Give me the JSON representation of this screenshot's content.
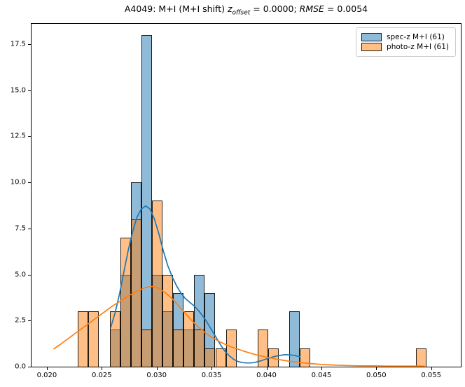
{
  "title": {
    "prefix": "A4049: M+I (M+I shift) ",
    "z_var": "z",
    "z_sub": "offset",
    "z_eq": " = 0.0000; ",
    "rmse_var": "RMSE",
    "rmse_eq": " = 0.0054"
  },
  "legend": {
    "items": [
      {
        "label": "spec-z M+I (61)",
        "color": "#1f77b4"
      },
      {
        "label": "photo-z M+I (61)",
        "color": "#ff7f0e"
      }
    ]
  },
  "chart_data": {
    "type": "histogram",
    "title": "A4049: M+I (M+I shift) z_offset = 0.0000; RMSE = 0.0054",
    "xlabel": "",
    "ylabel": "",
    "grid": false,
    "legend_position": "upper right",
    "xlim": [
      0.0186,
      0.0577
    ],
    "ylim": [
      0,
      18.6
    ],
    "bin_width": 0.00096,
    "x_ticks": [
      {
        "value": 0.02,
        "label": "0.020"
      },
      {
        "value": 0.025,
        "label": "0.025"
      },
      {
        "value": 0.03,
        "label": "0.030"
      },
      {
        "value": 0.035,
        "label": "0.035"
      },
      {
        "value": 0.04,
        "label": "0.040"
      },
      {
        "value": 0.045,
        "label": "0.045"
      },
      {
        "value": 0.05,
        "label": "0.050"
      },
      {
        "value": 0.055,
        "label": "0.055"
      }
    ],
    "y_ticks": [
      {
        "value": 0,
        "label": "0.0"
      },
      {
        "value": 2.5,
        "label": "2.5"
      },
      {
        "value": 5,
        "label": "5.0"
      },
      {
        "value": 7.5,
        "label": "7.5"
      },
      {
        "value": 10,
        "label": "10.0"
      },
      {
        "value": 12.5,
        "label": "12.5"
      },
      {
        "value": 15,
        "label": "15.0"
      },
      {
        "value": 17.5,
        "label": "17.5"
      }
    ],
    "series": [
      {
        "name": "spec-z M+I (61)",
        "color": "#1f77b4",
        "fill_alpha": 0.5,
        "bars": [
          [
            0.02572,
            2
          ],
          [
            0.02668,
            5
          ],
          [
            0.02764,
            10
          ],
          [
            0.02861,
            18
          ],
          [
            0.02957,
            5
          ],
          [
            0.03053,
            3
          ],
          [
            0.03149,
            4
          ],
          [
            0.03246,
            2
          ],
          [
            0.03342,
            5
          ],
          [
            0.03438,
            4
          ],
          [
            0.04209,
            3
          ]
        ],
        "kde": [
          [
            0.0258,
            2.1
          ],
          [
            0.0262,
            2.9
          ],
          [
            0.0266,
            3.9
          ],
          [
            0.027,
            5.1
          ],
          [
            0.0274,
            6.3
          ],
          [
            0.0278,
            7.3
          ],
          [
            0.0282,
            8.1
          ],
          [
            0.0286,
            8.55
          ],
          [
            0.029,
            8.72
          ],
          [
            0.0294,
            8.55
          ],
          [
            0.0298,
            8.0
          ],
          [
            0.0302,
            7.2
          ],
          [
            0.0306,
            6.3
          ],
          [
            0.031,
            5.5
          ],
          [
            0.0314,
            4.9
          ],
          [
            0.0318,
            4.4
          ],
          [
            0.0322,
            4.0
          ],
          [
            0.0326,
            3.7
          ],
          [
            0.033,
            3.5
          ],
          [
            0.0334,
            3.3
          ],
          [
            0.0338,
            3.05
          ],
          [
            0.0342,
            2.75
          ],
          [
            0.0346,
            2.4
          ],
          [
            0.035,
            2.0
          ],
          [
            0.0354,
            1.6
          ],
          [
            0.0358,
            1.2
          ],
          [
            0.0362,
            0.85
          ],
          [
            0.0366,
            0.6
          ],
          [
            0.037,
            0.4
          ],
          [
            0.0374,
            0.28
          ],
          [
            0.0378,
            0.22
          ],
          [
            0.0382,
            0.2
          ],
          [
            0.0386,
            0.2
          ],
          [
            0.039,
            0.24
          ],
          [
            0.0394,
            0.3
          ],
          [
            0.0398,
            0.38
          ],
          [
            0.0402,
            0.46
          ],
          [
            0.0406,
            0.53
          ],
          [
            0.041,
            0.59
          ],
          [
            0.0414,
            0.63
          ],
          [
            0.0418,
            0.65
          ],
          [
            0.0422,
            0.64
          ],
          [
            0.0426,
            0.6
          ],
          [
            0.0431,
            0.53
          ]
        ]
      },
      {
        "name": "photo-z M+I (61)",
        "color": "#ff7f0e",
        "fill_alpha": 0.5,
        "bars": [
          [
            0.02283,
            3
          ],
          [
            0.02379,
            3
          ],
          [
            0.02572,
            3
          ],
          [
            0.02668,
            7
          ],
          [
            0.02764,
            8
          ],
          [
            0.02861,
            2
          ],
          [
            0.02957,
            9
          ],
          [
            0.03053,
            5
          ],
          [
            0.03149,
            2
          ],
          [
            0.03246,
            3
          ],
          [
            0.03342,
            2
          ],
          [
            0.03438,
            1
          ],
          [
            0.03535,
            1
          ],
          [
            0.03631,
            2
          ],
          [
            0.0392,
            2
          ],
          [
            0.04016,
            1
          ],
          [
            0.04305,
            1
          ],
          [
            0.05364,
            1
          ]
        ],
        "kde": [
          [
            0.0206,
            0.95
          ],
          [
            0.0212,
            1.2
          ],
          [
            0.022,
            1.55
          ],
          [
            0.0228,
            1.9
          ],
          [
            0.0236,
            2.25
          ],
          [
            0.0244,
            2.6
          ],
          [
            0.0252,
            2.95
          ],
          [
            0.026,
            3.3
          ],
          [
            0.0268,
            3.6
          ],
          [
            0.0276,
            3.9
          ],
          [
            0.0284,
            4.15
          ],
          [
            0.029,
            4.3
          ],
          [
            0.0296,
            4.35
          ],
          [
            0.0302,
            4.25
          ],
          [
            0.0308,
            4.0
          ],
          [
            0.0314,
            3.7
          ],
          [
            0.032,
            3.3
          ],
          [
            0.0326,
            2.9
          ],
          [
            0.0332,
            2.5
          ],
          [
            0.0338,
            2.15
          ],
          [
            0.0344,
            1.85
          ],
          [
            0.035,
            1.6
          ],
          [
            0.0356,
            1.4
          ],
          [
            0.0362,
            1.22
          ],
          [
            0.0368,
            1.07
          ],
          [
            0.0374,
            0.95
          ],
          [
            0.038,
            0.83
          ],
          [
            0.0386,
            0.72
          ],
          [
            0.0392,
            0.62
          ],
          [
            0.0398,
            0.54
          ],
          [
            0.0404,
            0.47
          ],
          [
            0.041,
            0.4
          ],
          [
            0.042,
            0.3
          ],
          [
            0.043,
            0.23
          ],
          [
            0.044,
            0.17
          ],
          [
            0.045,
            0.12
          ],
          [
            0.046,
            0.09
          ],
          [
            0.047,
            0.07
          ],
          [
            0.048,
            0.05
          ],
          [
            0.049,
            0.04
          ],
          [
            0.05,
            0.04
          ],
          [
            0.051,
            0.03
          ],
          [
            0.052,
            0.03
          ],
          [
            0.053,
            0.03
          ],
          [
            0.0544,
            0.03
          ]
        ]
      }
    ]
  }
}
